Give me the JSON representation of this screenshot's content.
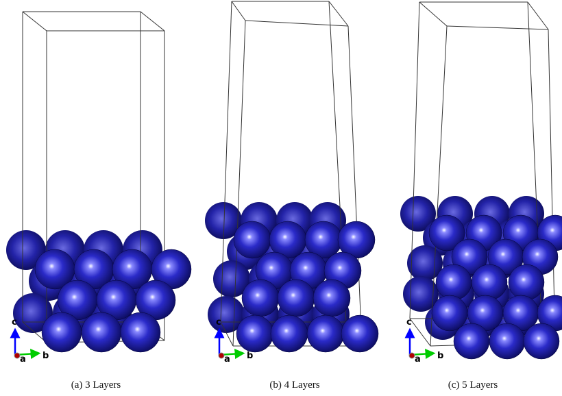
{
  "panels": [
    {
      "caption": "(a) 3 Layers",
      "axes": [
        "c",
        "a",
        "b"
      ]
    },
    {
      "caption": "(b) 4 Layers",
      "axes": [
        "c",
        "a",
        "b"
      ]
    },
    {
      "caption": "(c) 5 Layers",
      "axes": [
        "c",
        "a",
        "b"
      ]
    }
  ]
}
